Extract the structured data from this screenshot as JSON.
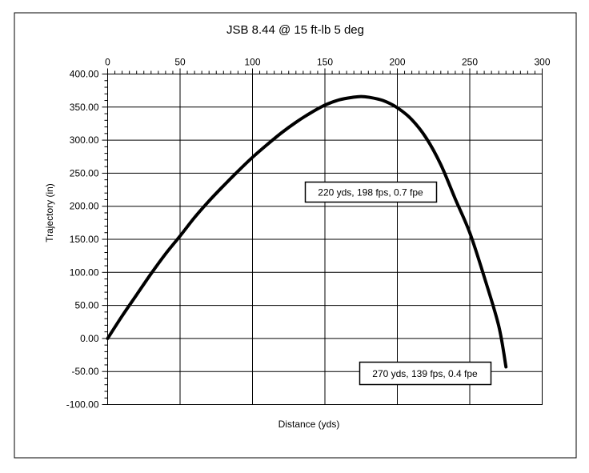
{
  "chart_data": {
    "type": "line",
    "title": "JSB 8.44 @ 15 ft-lb 5 deg",
    "xlabel": "Distance (yds)",
    "ylabel": "Trajectory (in)",
    "xlim": [
      0,
      300
    ],
    "ylim": [
      -100,
      400
    ],
    "x_ticks": [
      0,
      50,
      100,
      150,
      200,
      250,
      300
    ],
    "x_tick_labels": [
      "0",
      "50",
      "100",
      "150",
      "200",
      "250",
      "300"
    ],
    "y_ticks": [
      400,
      350,
      300,
      250,
      200,
      150,
      100,
      50,
      0,
      -50,
      -100
    ],
    "y_tick_labels": [
      "400.00",
      "350.00",
      "300.00",
      "250.00",
      "200.00",
      "150.00",
      "100.00",
      "50.00",
      "0.00",
      "-50.00",
      "-100.00"
    ],
    "x_axis_position": "top",
    "grid": true,
    "series": [
      {
        "color": "#000000",
        "x": [
          0,
          10,
          20,
          30,
          40,
          50,
          60,
          70,
          80,
          90,
          100,
          110,
          120,
          130,
          140,
          150,
          160,
          170,
          175,
          180,
          190,
          200,
          210,
          220,
          230,
          240,
          250,
          260,
          270,
          275
        ],
        "y": [
          0,
          34,
          66,
          98,
          128,
          155,
          183,
          208,
          231,
          253,
          274,
          293,
          311,
          327,
          341,
          353,
          361,
          365,
          366,
          365,
          360,
          349,
          331,
          303,
          263,
          211,
          160,
          93,
          19,
          -43
        ]
      }
    ],
    "annotations": [
      {
        "text": "220 yds, 198 fps, 0.7 fpe"
      },
      {
        "text": "270 yds, 139 fps, 0.4 fpe"
      }
    ]
  }
}
